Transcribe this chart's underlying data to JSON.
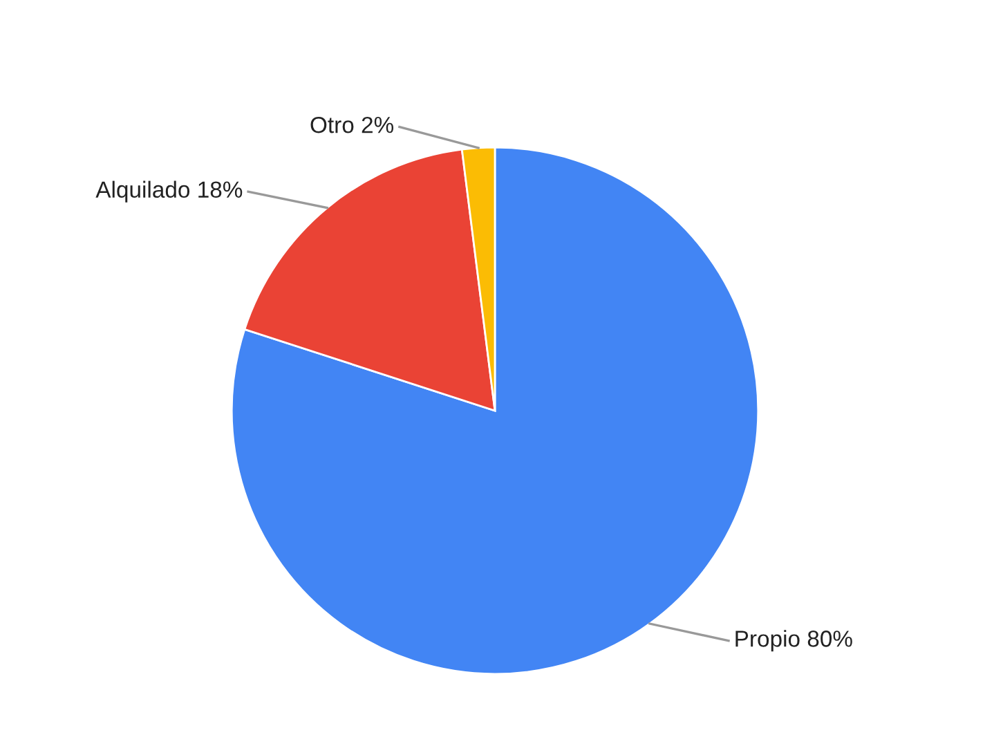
{
  "chart_data": {
    "type": "pie",
    "categories": [
      "Propio",
      "Alquilado",
      "Otro"
    ],
    "values": [
      80,
      18,
      2
    ],
    "value_labels": [
      "80%",
      "18%",
      "2%"
    ],
    "colors": [
      "#4285f4",
      "#ea4335",
      "#fbbc04"
    ]
  }
}
